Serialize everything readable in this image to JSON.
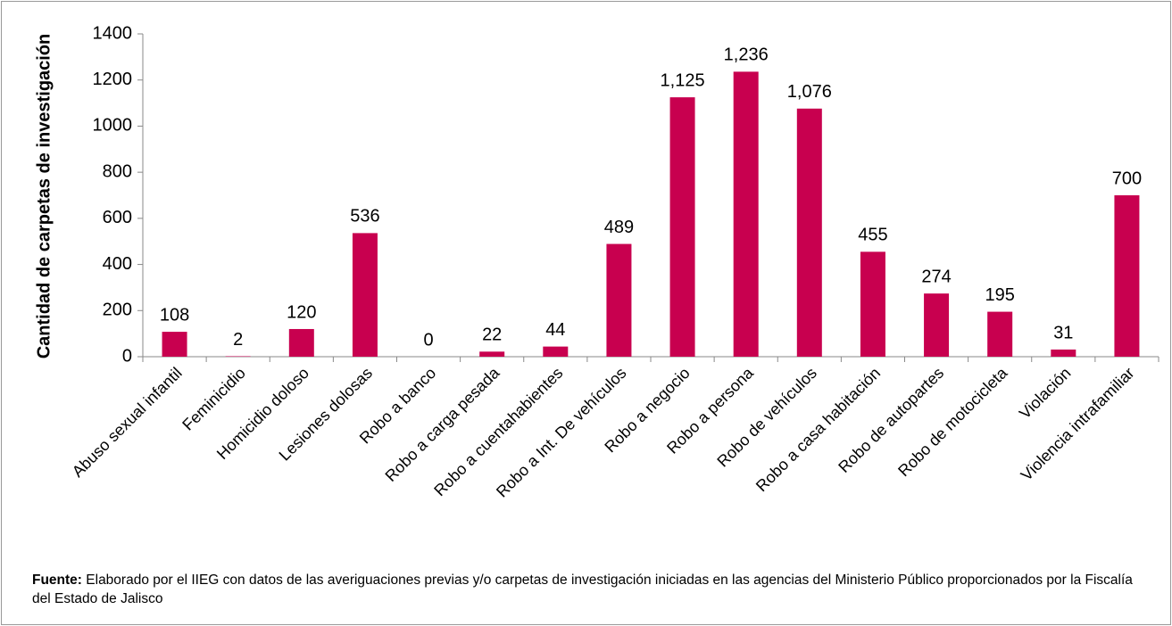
{
  "chart_data": {
    "type": "bar",
    "y_axis_label": "Cantidad de carpetas de investigación",
    "categories": [
      "Abuso sexual infantil",
      "Feminicidio",
      "Homicidio doloso",
      "Lesiones dolosas",
      "Robo a banco",
      "Robo a carga pesada",
      "Robo a cuentahabientes",
      "Robo a Int. De vehículos",
      "Robo a negocio",
      "Robo a persona",
      "Robo de vehículos",
      "Robo a casa habitación",
      "Robo de autopartes",
      "Robo de motocicleta",
      "Violación",
      "Violencia intrafamiliar"
    ],
    "values": [
      108,
      2,
      120,
      536,
      0,
      22,
      44,
      489,
      1125,
      1236,
      1076,
      455,
      274,
      195,
      31,
      700
    ],
    "value_labels": [
      "108",
      "2",
      "120",
      "536",
      "0",
      "22",
      "44",
      "489",
      "1,125",
      "1,236",
      "1,076",
      "455",
      "274",
      "195",
      "31",
      "700"
    ],
    "color": "#c8004f",
    "ylim": [
      0,
      1400
    ],
    "yticks": [
      0,
      200,
      400,
      600,
      800,
      1000,
      1200,
      1400
    ],
    "grid": false,
    "source_label": "Fuente:",
    "source_text": "Elaborado por el IIEG con datos de las averiguaciones previas y/o carpetas de investigación iniciadas en las agencias del Ministerio Público proporcionados por la Fiscalía del Estado de Jalisco"
  }
}
